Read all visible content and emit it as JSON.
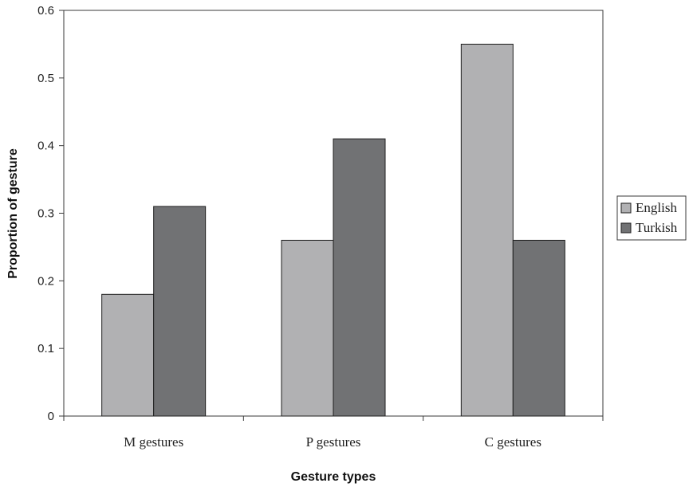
{
  "chart_data": {
    "type": "bar",
    "title": "",
    "xlabel": "Gesture types",
    "ylabel": "Proportion of gesture",
    "categories": [
      "M gestures",
      "P gestures",
      "C gestures"
    ],
    "series": [
      {
        "name": "English",
        "values": [
          0.18,
          0.26,
          0.55
        ],
        "color": "#b1b1b3"
      },
      {
        "name": "Turkish",
        "values": [
          0.31,
          0.41,
          0.26
        ],
        "color": "#717274"
      }
    ],
    "ylim": [
      0,
      0.6
    ],
    "yticks": [
      "0",
      "0.1",
      "0.2",
      "0.3",
      "0.4",
      "0.5",
      "0.6"
    ],
    "grid": false,
    "legend_position": "right"
  }
}
